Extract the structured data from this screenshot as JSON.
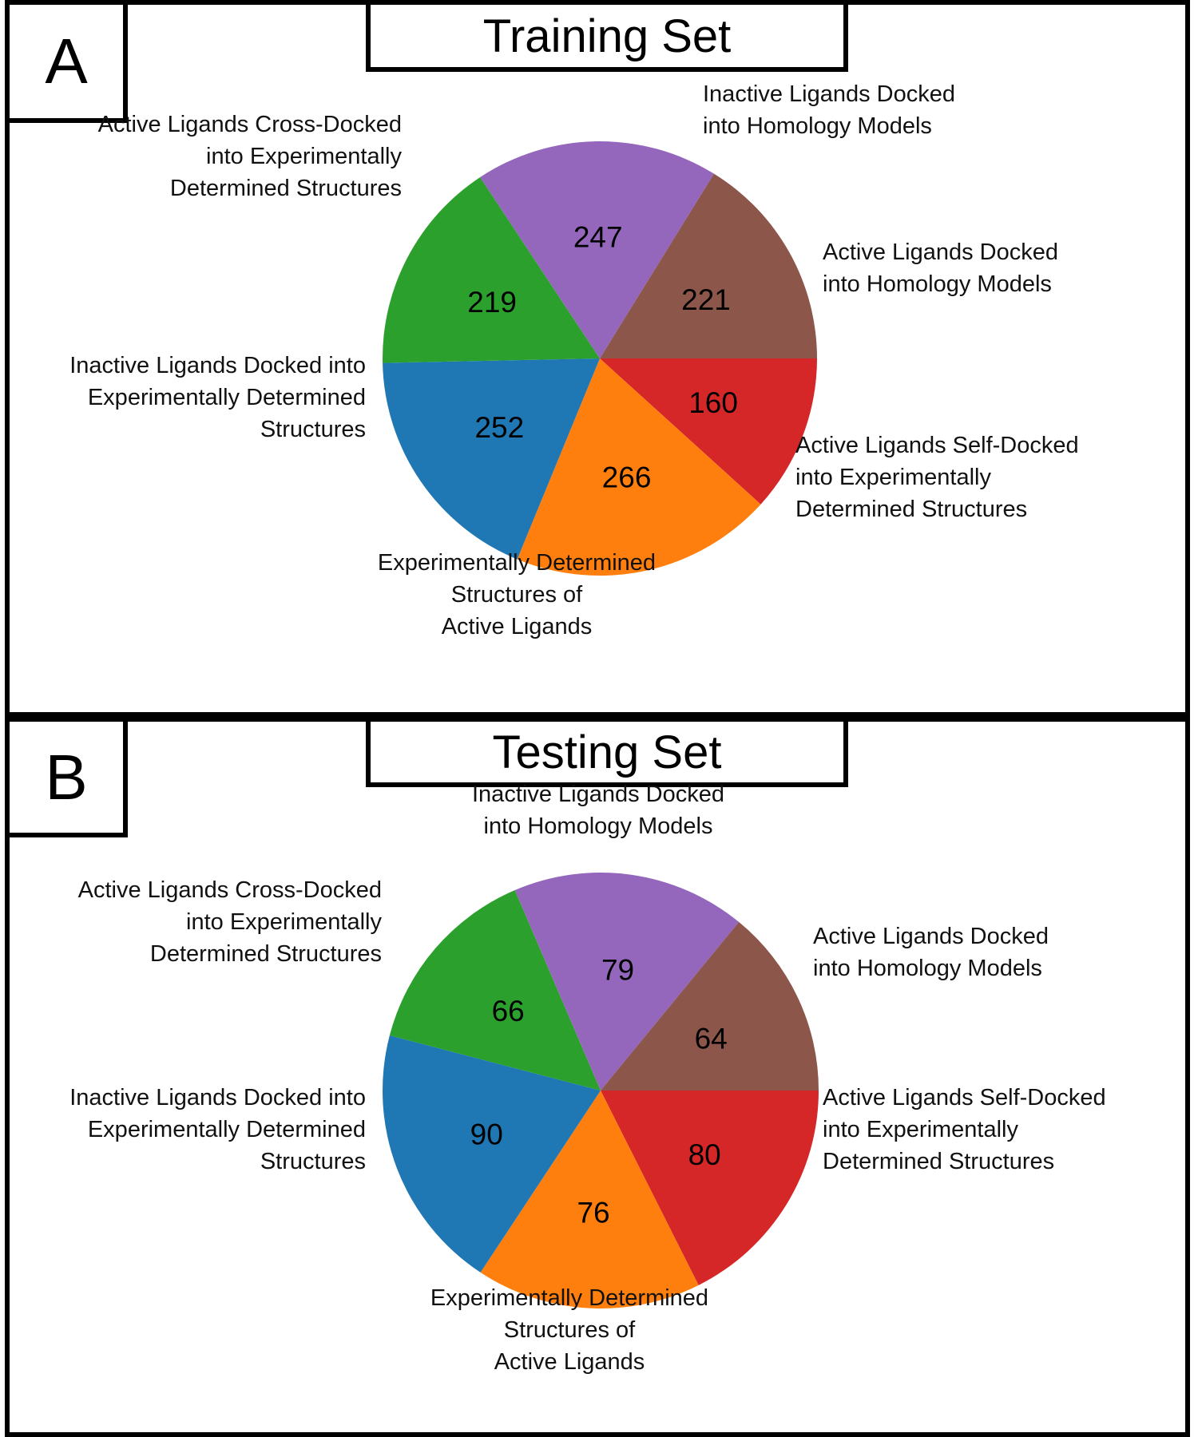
{
  "chart_data": [
    {
      "type": "pie",
      "panel": "A",
      "title": "Training Set",
      "slices": [
        {
          "label": "Active Ligands Docked into Homology Models",
          "value": 160,
          "color": "#d62728"
        },
        {
          "label": "Active Ligands Self-Docked into Experimentally Determined Structures",
          "value": 266,
          "color": "#ff7f0e"
        },
        {
          "label": "Experimentally Determined Structures of Active Ligands",
          "value": 252,
          "color": "#1f77b4"
        },
        {
          "label": "Inactive Ligands Docked into Experimentally Determined Structures",
          "value": 219,
          "color": "#2ca02c"
        },
        {
          "label": "Active Ligands Cross-Docked into Experimentally Determined Structures",
          "value": 247,
          "color": "#9467bd"
        },
        {
          "label": "Inactive Ligands Docked into Homology Models",
          "value": 221,
          "color": "#8c564b"
        }
      ],
      "value_labels": [
        "160",
        "266",
        "252",
        "219",
        "247",
        "221"
      ],
      "slice_label_lines": [
        [
          "Active Ligands Docked",
          "into Homology Models"
        ],
        [
          "Active Ligands Self-Docked",
          "into Experimentally",
          "Determined Structures"
        ],
        [
          "Experimentally Determined",
          "Structures of",
          "Active Ligands"
        ],
        [
          "Inactive Ligands Docked into",
          "Experimentally Determined",
          "Structures"
        ],
        [
          "Active Ligands Cross-Docked",
          "into Experimentally",
          "Determined Structures"
        ],
        [
          "Inactive Ligands Docked",
          "into Homology Models"
        ]
      ]
    },
    {
      "type": "pie",
      "panel": "B",
      "title": "Testing Set",
      "slices": [
        {
          "label": "Active Ligands Docked into Homology Models",
          "value": 80,
          "color": "#d62728"
        },
        {
          "label": "Active Ligands Self-Docked into Experimentally Determined Structures",
          "value": 76,
          "color": "#ff7f0e"
        },
        {
          "label": "Experimentally Determined Structures of Active Ligands",
          "value": 90,
          "color": "#1f77b4"
        },
        {
          "label": "Inactive Ligands Docked into Experimentally Determined Structures",
          "value": 66,
          "color": "#2ca02c"
        },
        {
          "label": "Active Ligands Cross-Docked into Experimentally Determined Structures",
          "value": 79,
          "color": "#9467bd"
        },
        {
          "label": "Inactive Ligands Docked into Homology Models",
          "value": 64,
          "color": "#8c564b"
        }
      ],
      "value_labels": [
        "80",
        "76",
        "90",
        "66",
        "79",
        "64"
      ],
      "slice_label_lines": [
        [
          "Active Ligands Docked",
          "into Homology Models"
        ],
        [
          "Active Ligands Self-Docked",
          "into Experimentally",
          "Determined Structures"
        ],
        [
          "Experimentally Determined",
          "Structures of",
          "Active Ligands"
        ],
        [
          "Inactive Ligands Docked into",
          "Experimentally Determined",
          "Structures"
        ],
        [
          "Active Ligands Cross-Docked",
          "into Experimentally",
          "Determined Structures"
        ],
        [
          "Inactive Ligands Docked",
          "into Homology Models"
        ]
      ]
    }
  ]
}
